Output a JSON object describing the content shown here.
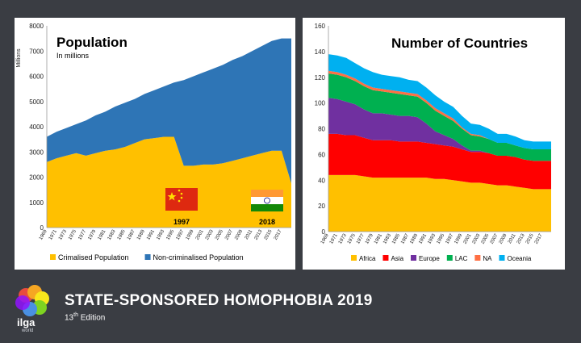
{
  "chart_data": [
    {
      "type": "area",
      "id": "population",
      "title": "Population",
      "subtitle": "In millions",
      "ylabel": "Millions",
      "ylim": [
        0,
        8000
      ],
      "yticks": [
        0,
        1000,
        2000,
        3000,
        4000,
        5000,
        6000,
        7000,
        8000
      ],
      "x": [
        1969,
        1971,
        1973,
        1975,
        1977,
        1979,
        1981,
        1983,
        1985,
        1987,
        1989,
        1991,
        1993,
        1995,
        1997,
        1999,
        2001,
        2003,
        2005,
        2007,
        2009,
        2011,
        2013,
        2015,
        2017,
        2019
      ],
      "xticks": [
        1969,
        1971,
        1973,
        1975,
        1977,
        1979,
        1981,
        1983,
        1985,
        1987,
        1989,
        1991,
        1993,
        1995,
        1997,
        1999,
        2001,
        2003,
        2005,
        2007,
        2009,
        2011,
        2013,
        2015,
        2017
      ],
      "stacked": true,
      "series": [
        {
          "name": "Crimalised Population",
          "color": "#ffc000",
          "values": [
            2600,
            2750,
            2850,
            2950,
            2850,
            2950,
            3050,
            3100,
            3200,
            3350,
            3500,
            3550,
            3600,
            3600,
            2450,
            2450,
            2500,
            2500,
            2550,
            2650,
            2750,
            2850,
            2950,
            3050,
            3050,
            1750
          ]
        },
        {
          "name": "Non-criminalised Population",
          "color": "#2e75b6",
          "values": [
            1000,
            1050,
            1100,
            1150,
            1400,
            1500,
            1550,
            1700,
            1750,
            1750,
            1800,
            1900,
            2000,
            2150,
            3400,
            3550,
            3650,
            3800,
            3900,
            4000,
            4050,
            4150,
            4250,
            4350,
            4450,
            5750
          ]
        }
      ],
      "annotations": [
        {
          "label": "1997",
          "flag": "china"
        },
        {
          "label": "2018",
          "flag": "india"
        }
      ]
    },
    {
      "type": "area",
      "id": "countries",
      "title": "Number of Countries",
      "ylim": [
        0,
        160
      ],
      "yticks": [
        0,
        20,
        40,
        60,
        80,
        100,
        120,
        140,
        160
      ],
      "x": [
        1969,
        1971,
        1973,
        1975,
        1977,
        1979,
        1981,
        1983,
        1985,
        1987,
        1989,
        1991,
        1993,
        1995,
        1997,
        1999,
        2001,
        2003,
        2005,
        2007,
        2009,
        2011,
        2013,
        2015,
        2017,
        2019
      ],
      "xticks": [
        1969,
        1971,
        1973,
        1975,
        1977,
        1979,
        1981,
        1983,
        1985,
        1987,
        1989,
        1991,
        1993,
        1995,
        1997,
        1999,
        2001,
        2003,
        2005,
        2007,
        2009,
        2011,
        2013,
        2015,
        2017
      ],
      "stacked": true,
      "series": [
        {
          "name": "Africa",
          "color": "#ffc000",
          "values": [
            44,
            44,
            44,
            44,
            43,
            42,
            42,
            42,
            42,
            42,
            42,
            42,
            41,
            41,
            40,
            39,
            38,
            38,
            37,
            36,
            36,
            35,
            34,
            33,
            33,
            33
          ]
        },
        {
          "name": "Asia",
          "color": "#ff0000",
          "values": [
            32,
            32,
            31,
            31,
            30,
            29,
            29,
            29,
            28,
            28,
            28,
            27,
            27,
            26,
            26,
            25,
            24,
            24,
            24,
            23,
            23,
            23,
            22,
            22,
            22,
            22
          ]
        },
        {
          "name": "Europe",
          "color": "#7030a0",
          "values": [
            28,
            27,
            26,
            24,
            22,
            21,
            21,
            20,
            20,
            20,
            19,
            15,
            10,
            8,
            6,
            3,
            1,
            1,
            0,
            0,
            0,
            0,
            0,
            0,
            0,
            0
          ]
        },
        {
          "name": "LAC",
          "color": "#00b050",
          "values": [
            19,
            19,
            19,
            18,
            18,
            18,
            17,
            17,
            17,
            16,
            16,
            16,
            16,
            15,
            14,
            13,
            12,
            11,
            11,
            10,
            10,
            9,
            9,
            9,
            9,
            9
          ]
        },
        {
          "name": "NA",
          "color": "#ff6f43",
          "values": [
            2,
            2,
            2,
            2,
            2,
            2,
            2,
            2,
            2,
            2,
            2,
            2,
            2,
            2,
            2,
            1,
            1,
            1,
            0,
            0,
            0,
            0,
            0,
            0,
            0,
            0
          ]
        },
        {
          "name": "Oceania",
          "color": "#00b0f0",
          "values": [
            13,
            13,
            13,
            12,
            12,
            12,
            11,
            11,
            11,
            10,
            10,
            10,
            10,
            9,
            9,
            9,
            8,
            8,
            8,
            7,
            7,
            7,
            6,
            6,
            6,
            6
          ]
        }
      ]
    }
  ],
  "footer": {
    "title": "STATE-SPONSORED HOMOPHOBIA 2019",
    "edition_number": "13",
    "edition_suffix": "th",
    "edition_word": "Edition"
  },
  "logo": {
    "word": "ilga",
    "small": "world"
  }
}
